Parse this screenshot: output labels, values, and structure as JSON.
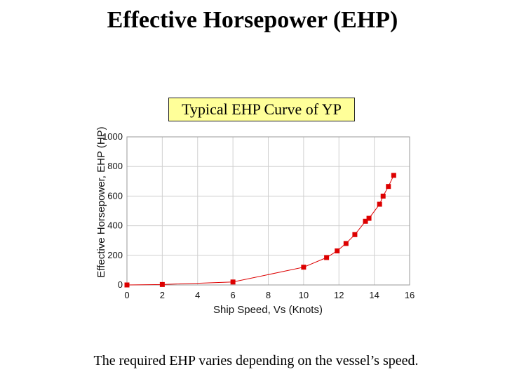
{
  "slide": {
    "title": "Effective Horsepower (EHP)",
    "chart_title": "Typical EHP Curve of YP",
    "caption": "The required EHP varies depending on the vessel’s speed."
  },
  "colors": {
    "series": "#dd0000",
    "chart_title_bg": "#ffff99",
    "grid": "#d0d0d0"
  },
  "chart_data": {
    "type": "line",
    "title": "Typical EHP Curve of YP",
    "xlabel": "Ship Speed, Vs (Knots)",
    "ylabel": "Effective Horsepower, EHP (HP)",
    "xlim": [
      0,
      16
    ],
    "ylim": [
      0,
      1000
    ],
    "xticks": [
      0,
      2,
      4,
      6,
      8,
      10,
      12,
      14,
      16
    ],
    "yticks": [
      0,
      200,
      400,
      600,
      800,
      1000
    ],
    "xtick_labels": [
      "0",
      "2",
      "4",
      "6",
      "8",
      "10",
      "12",
      "14",
      "16"
    ],
    "ytick_labels": [
      "0",
      "200",
      "400",
      "600",
      "800",
      "1000"
    ],
    "grid": true,
    "series": [
      {
        "x": [
          0,
          2,
          6,
          10,
          11.3,
          11.9,
          12.4,
          12.9,
          13.5,
          13.7,
          14.3,
          14.5,
          14.8,
          15.1
        ],
        "y": [
          0,
          3,
          20,
          120,
          185,
          230,
          280,
          340,
          430,
          450,
          545,
          600,
          665,
          740
        ]
      }
    ]
  }
}
